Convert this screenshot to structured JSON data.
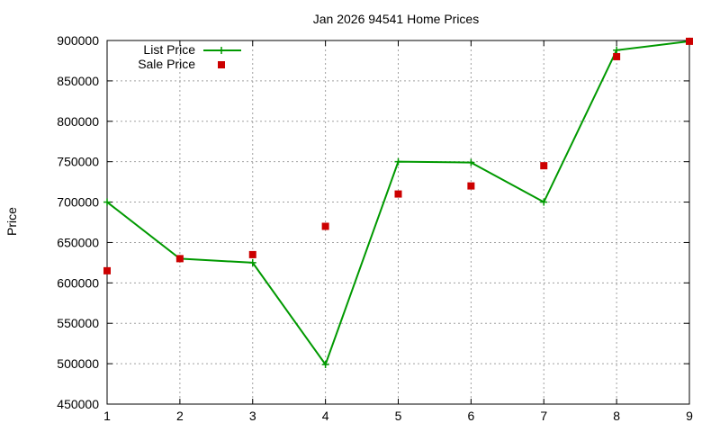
{
  "chart_data": {
    "type": "line",
    "title": "Jan 2026 94541 Home Prices",
    "xlabel": "",
    "ylabel": "Price",
    "x": [
      1,
      2,
      3,
      4,
      5,
      6,
      7,
      8,
      9
    ],
    "xlim": [
      1,
      9
    ],
    "ylim": [
      450000,
      900000
    ],
    "xticks": [
      "1",
      "2",
      "3",
      "4",
      "5",
      "6",
      "7",
      "8",
      "9"
    ],
    "yticks": [
      "450000",
      "500000",
      "550000",
      "600000",
      "650000",
      "700000",
      "750000",
      "800000",
      "850000",
      "900000"
    ],
    "grid": true,
    "legend_position": "top-left",
    "series": [
      {
        "name": "List Price",
        "style": "line-with-plus-markers",
        "color": "#009900",
        "values": [
          700000,
          630000,
          625000,
          499000,
          750000,
          749000,
          700000,
          888000,
          899000
        ]
      },
      {
        "name": "Sale Price",
        "style": "square-markers",
        "color": "#cc0000",
        "values": [
          615000,
          630000,
          635000,
          670000,
          710000,
          720000,
          745000,
          880000,
          899000
        ]
      }
    ]
  }
}
